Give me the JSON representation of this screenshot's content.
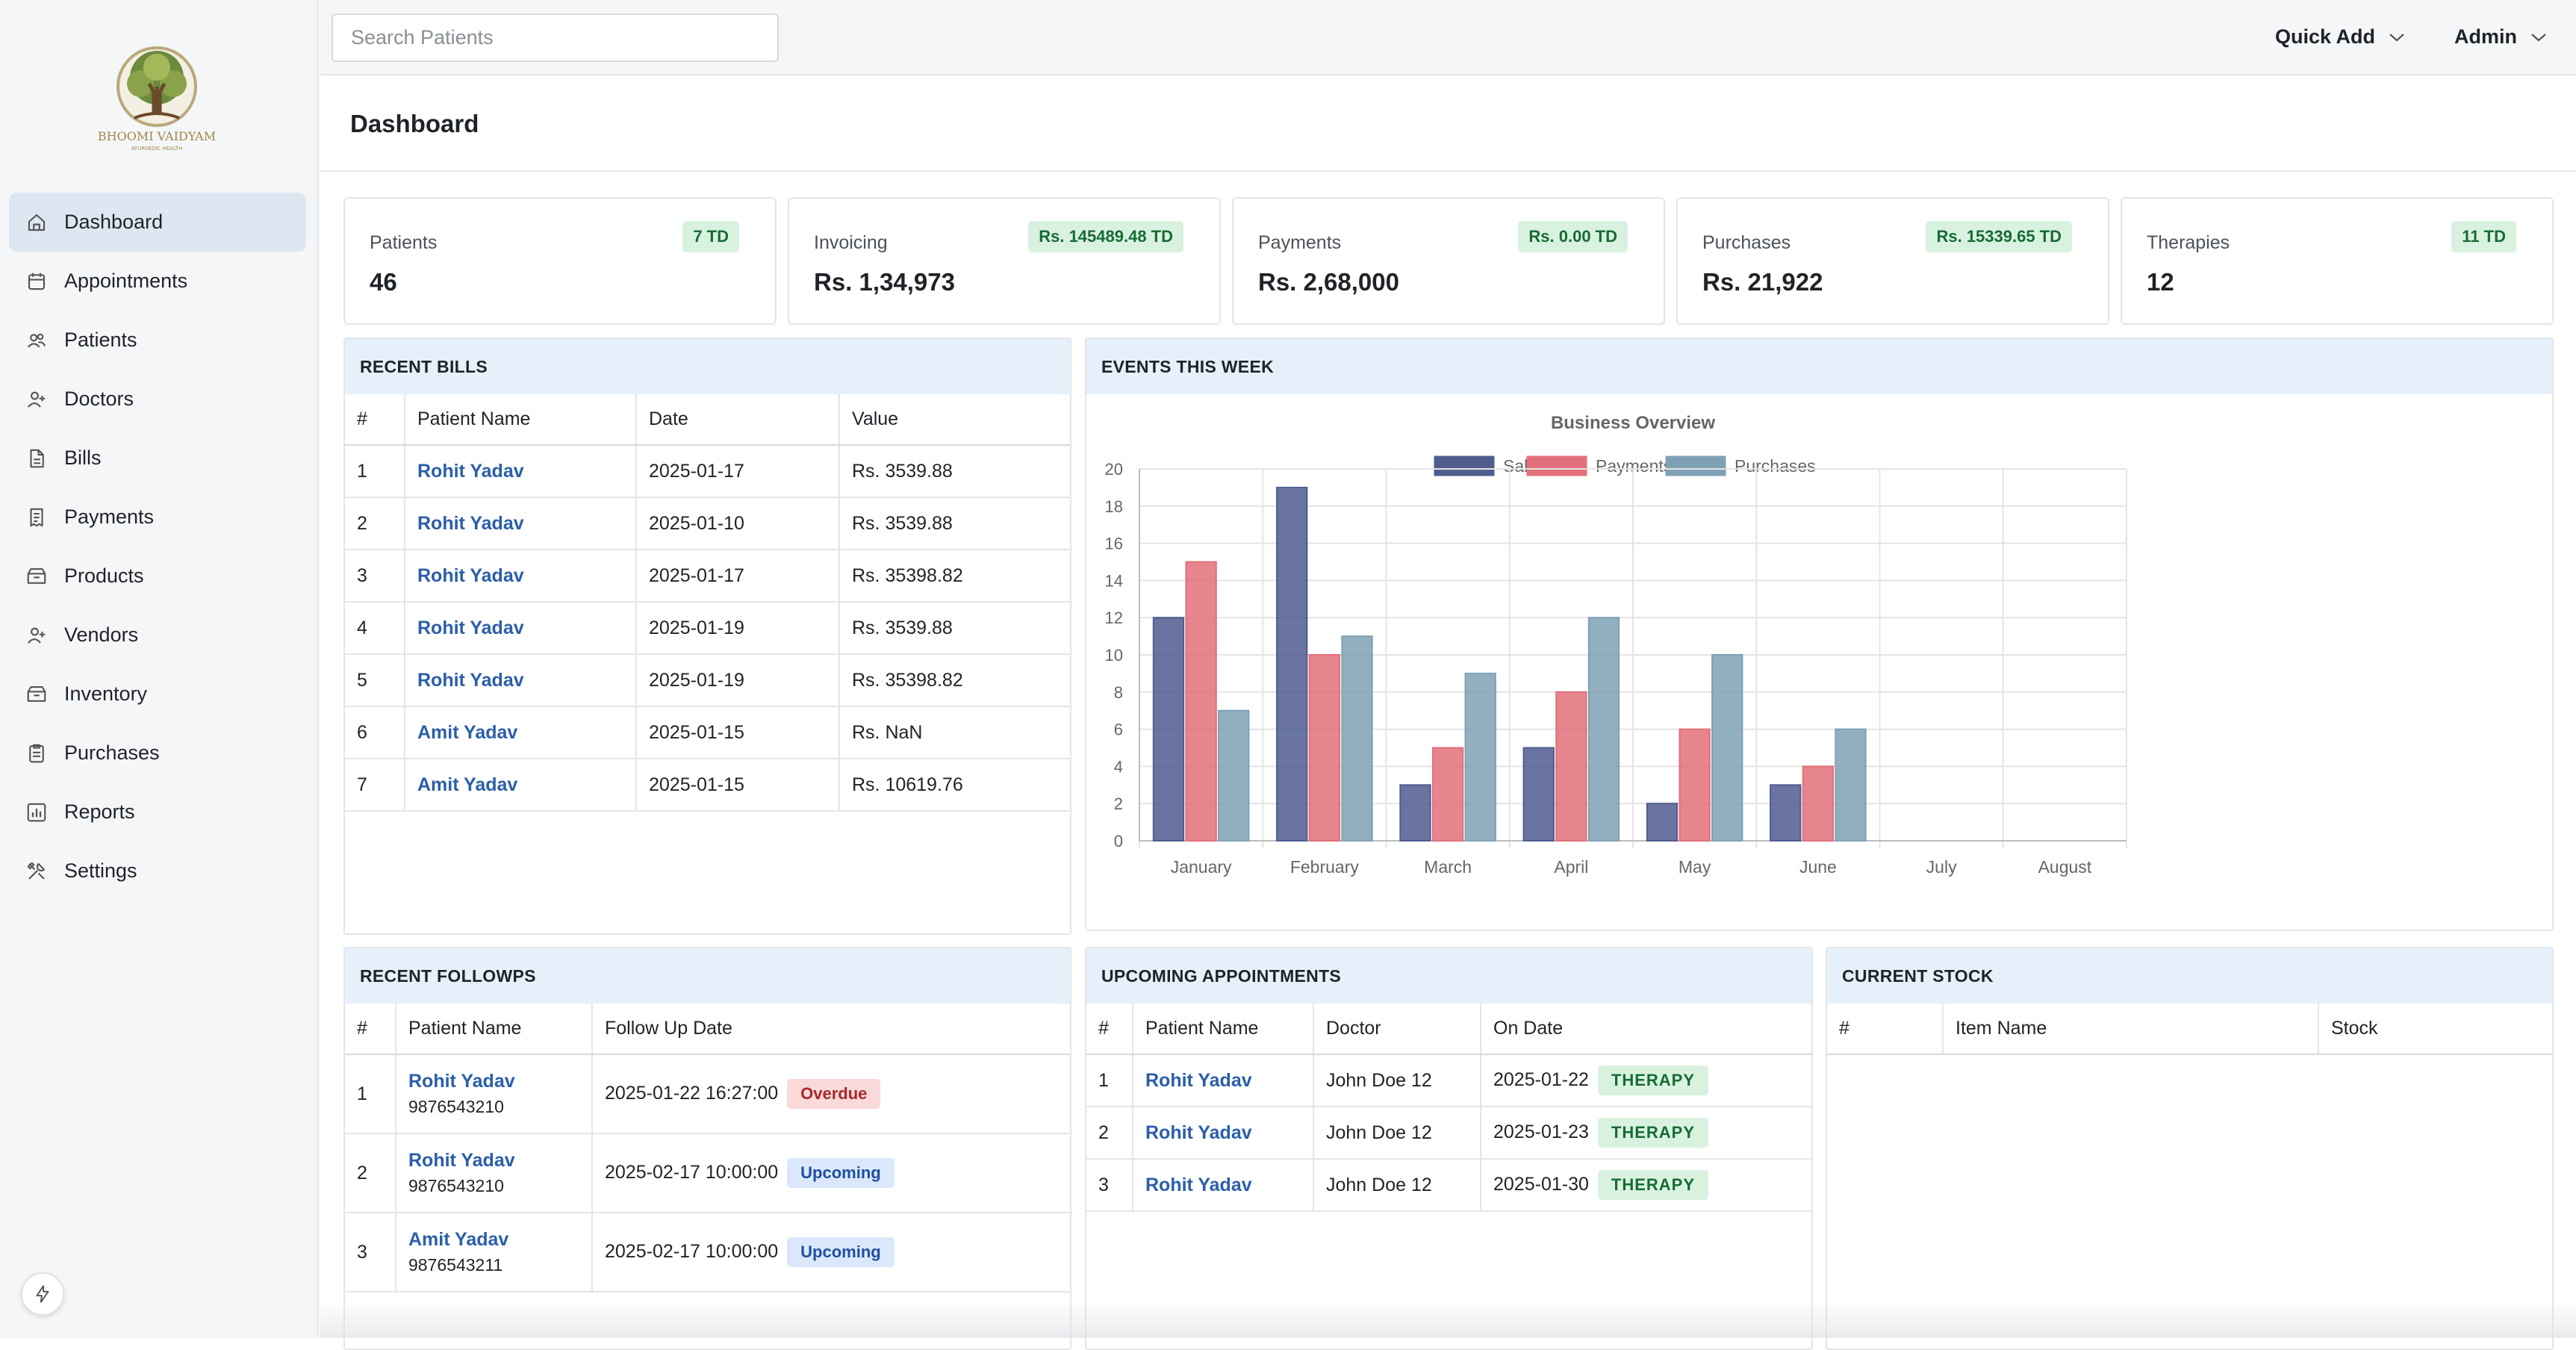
{
  "brand": {
    "name": "BHOOMI VAIDYAM",
    "tagline": "AYURVEDIC HEALTH"
  },
  "search": {
    "placeholder": "Search Patients"
  },
  "header": {
    "quick_add": "Quick Add",
    "user": "Admin"
  },
  "page_title": "Dashboard",
  "sidebar": {
    "items": [
      {
        "label": "Dashboard",
        "icon": "home-icon"
      },
      {
        "label": "Appointments",
        "icon": "calendar-icon"
      },
      {
        "label": "Patients",
        "icon": "users-icon"
      },
      {
        "label": "Doctors",
        "icon": "user-plus-icon"
      },
      {
        "label": "Bills",
        "icon": "file-icon"
      },
      {
        "label": "Payments",
        "icon": "receipt-icon"
      },
      {
        "label": "Products",
        "icon": "box-icon"
      },
      {
        "label": "Vendors",
        "icon": "user-plus-icon"
      },
      {
        "label": "Inventory",
        "icon": "box-icon"
      },
      {
        "label": "Purchases",
        "icon": "clipboard-icon"
      },
      {
        "label": "Reports",
        "icon": "bar-chart-icon"
      },
      {
        "label": "Settings",
        "icon": "tools-icon"
      }
    ]
  },
  "stats": [
    {
      "label": "Patients",
      "value": "46",
      "badge": "7 TD"
    },
    {
      "label": "Invoicing",
      "value": "Rs. 1,34,973",
      "badge": "Rs. 145489.48 TD"
    },
    {
      "label": "Payments",
      "value": "Rs. 2,68,000",
      "badge": "Rs. 0.00 TD"
    },
    {
      "label": "Purchases",
      "value": "Rs. 21,922",
      "badge": "Rs. 15339.65 TD"
    },
    {
      "label": "Therapies",
      "value": "12",
      "badge": "11 TD"
    }
  ],
  "recent_bills": {
    "title": "RECENT BILLS",
    "columns": [
      "#",
      "Patient Name",
      "Date",
      "Value"
    ],
    "rows": [
      {
        "n": "1",
        "name": "Rohit Yadav",
        "date": "2025-01-17",
        "value": "Rs. 3539.88"
      },
      {
        "n": "2",
        "name": "Rohit Yadav",
        "date": "2025-01-10",
        "value": "Rs. 3539.88"
      },
      {
        "n": "3",
        "name": "Rohit Yadav",
        "date": "2025-01-17",
        "value": "Rs. 35398.82"
      },
      {
        "n": "4",
        "name": "Rohit Yadav",
        "date": "2025-01-19",
        "value": "Rs. 3539.88"
      },
      {
        "n": "5",
        "name": "Rohit Yadav",
        "date": "2025-01-19",
        "value": "Rs. 35398.82"
      },
      {
        "n": "6",
        "name": "Amit Yadav",
        "date": "2025-01-15",
        "value": "Rs. NaN"
      },
      {
        "n": "7",
        "name": "Amit Yadav",
        "date": "2025-01-15",
        "value": "Rs. 10619.76"
      }
    ]
  },
  "events": {
    "title": "EVENTS THIS WEEK"
  },
  "chart_data": {
    "type": "bar",
    "title": "Business Overview",
    "categories": [
      "January",
      "February",
      "March",
      "April",
      "May",
      "June",
      "July",
      "August"
    ],
    "series": [
      {
        "name": "Sales",
        "color": "#4f5d8f",
        "values": [
          12,
          19,
          3,
          5,
          2,
          3,
          0,
          0
        ]
      },
      {
        "name": "Payments",
        "color": "#e2707a",
        "values": [
          15,
          10,
          5,
          8,
          6,
          4,
          0,
          0
        ]
      },
      {
        "name": "Purchases",
        "color": "#7fa1b5",
        "values": [
          7,
          11,
          9,
          12,
          10,
          6,
          0,
          0
        ]
      }
    ],
    "ylim": [
      0,
      20
    ],
    "yticks": [
      0,
      2,
      4,
      6,
      8,
      10,
      12,
      14,
      16,
      18,
      20
    ],
    "legend": "top",
    "grid": true
  },
  "followups": {
    "title": "RECENT FOLLOWPS",
    "columns": [
      "#",
      "Patient Name",
      "Follow Up Date"
    ],
    "rows": [
      {
        "n": "1",
        "name": "Rohit Yadav",
        "phone": "9876543210",
        "date": "2025-01-22 16:27:00",
        "status": "Overdue"
      },
      {
        "n": "2",
        "name": "Rohit Yadav",
        "phone": "9876543210",
        "date": "2025-02-17 10:00:00",
        "status": "Upcoming"
      },
      {
        "n": "3",
        "name": "Amit Yadav",
        "phone": "9876543211",
        "date": "2025-02-17 10:00:00",
        "status": "Upcoming"
      }
    ]
  },
  "appointments": {
    "title": "UPCOMING APPOINTMENTS",
    "columns": [
      "#",
      "Patient Name",
      "Doctor",
      "On Date"
    ],
    "rows": [
      {
        "n": "1",
        "name": "Rohit Yadav",
        "doctor": "John Doe 12",
        "date": "2025-01-22",
        "type": "THERAPY"
      },
      {
        "n": "2",
        "name": "Rohit Yadav",
        "doctor": "John Doe 12",
        "date": "2025-01-23",
        "type": "THERAPY"
      },
      {
        "n": "3",
        "name": "Rohit Yadav",
        "doctor": "John Doe 12",
        "date": "2025-01-30",
        "type": "THERAPY"
      }
    ]
  },
  "stock": {
    "title": "CURRENT STOCK",
    "columns": [
      "#",
      "Item Name",
      "Stock"
    ]
  }
}
